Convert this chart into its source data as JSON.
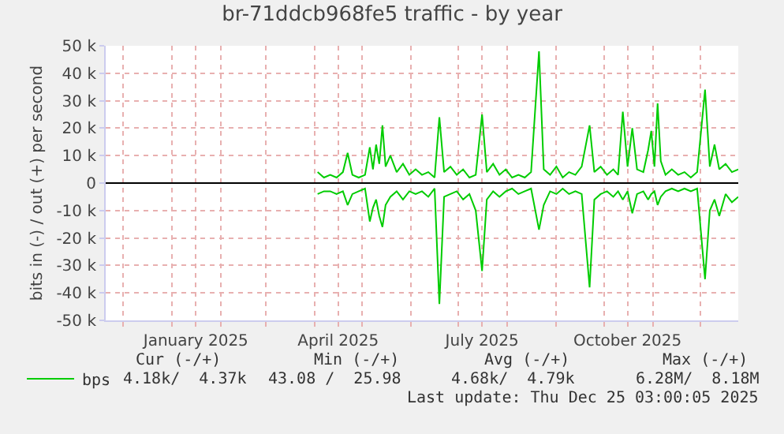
{
  "chart_data": {
    "type": "line",
    "title": "br-71ddcb968fe5 traffic - by year",
    "ylabel": "bits in (-) / out (+) per second",
    "x": [
      "2025-04-03",
      "2025-04-07",
      "2025-04-11",
      "2025-04-15",
      "2025-04-19",
      "2025-04-22",
      "2025-04-25",
      "2025-04-29",
      "2025-05-03",
      "2025-05-06",
      "2025-05-08",
      "2025-05-10",
      "2025-05-12",
      "2025-05-14",
      "2025-05-16",
      "2025-05-19",
      "2025-05-23",
      "2025-05-27",
      "2025-05-31",
      "2025-06-04",
      "2025-06-08",
      "2025-06-12",
      "2025-06-16",
      "2025-06-19",
      "2025-06-22",
      "2025-06-26",
      "2025-06-30",
      "2025-07-04",
      "2025-07-08",
      "2025-07-12",
      "2025-07-16",
      "2025-07-19",
      "2025-07-23",
      "2025-07-27",
      "2025-07-31",
      "2025-08-04",
      "2025-08-08",
      "2025-08-12",
      "2025-08-16",
      "2025-08-21",
      "2025-08-24",
      "2025-08-28",
      "2025-09-01",
      "2025-09-05",
      "2025-09-09",
      "2025-09-13",
      "2025-09-17",
      "2025-09-22",
      "2025-09-25",
      "2025-09-29",
      "2025-10-03",
      "2025-10-07",
      "2025-10-10",
      "2025-10-13",
      "2025-10-16",
      "2025-10-19",
      "2025-10-22",
      "2025-10-26",
      "2025-10-29",
      "2025-10-31",
      "2025-11-02",
      "2025-11-04",
      "2025-11-06",
      "2025-11-09",
      "2025-11-13",
      "2025-11-17",
      "2025-11-21",
      "2025-11-25",
      "2025-11-29",
      "2025-12-04",
      "2025-12-07",
      "2025-12-10",
      "2025-12-13",
      "2025-12-17",
      "2025-12-21",
      "2025-12-25"
    ],
    "series": [
      {
        "name": "bps",
        "color": "#00cc00",
        "values": [
          4000,
          2000,
          3000,
          2000,
          4000,
          11000,
          3000,
          2000,
          3000,
          13000,
          5000,
          14000,
          7000,
          21000,
          6000,
          10000,
          4000,
          7000,
          3000,
          5000,
          3000,
          4000,
          2000,
          24000,
          4000,
          6000,
          3000,
          5000,
          2000,
          3000,
          25000,
          4000,
          7000,
          3000,
          5000,
          2000,
          3000,
          2000,
          4000,
          48000,
          5000,
          3000,
          6000,
          2000,
          4000,
          3000,
          6000,
          21000,
          4000,
          6000,
          3000,
          5000,
          3000,
          26000,
          6000,
          20000,
          5000,
          4000,
          12000,
          19000,
          6000,
          29000,
          8000,
          3000,
          5000,
          3000,
          4000,
          2000,
          4000,
          34000,
          6000,
          14000,
          5000,
          7000,
          4000,
          5000
        ]
      },
      {
        "color": "#00cc00",
        "values": [
          -4000,
          -3000,
          -3000,
          -4000,
          -3000,
          -8000,
          -4000,
          -3000,
          -2000,
          -14000,
          -9000,
          -6000,
          -12000,
          -16000,
          -8000,
          -5000,
          -3000,
          -6000,
          -3000,
          -4000,
          -3000,
          -5000,
          -2000,
          -44000,
          -5000,
          -4000,
          -3000,
          -6000,
          -4000,
          -10000,
          -32000,
          -6000,
          -3000,
          -5000,
          -3000,
          -2000,
          -4000,
          -3000,
          -2000,
          -17000,
          -8000,
          -3000,
          -4000,
          -2000,
          -4000,
          -3000,
          -4000,
          -38000,
          -6000,
          -4000,
          -3000,
          -5000,
          -3000,
          -6000,
          -3000,
          -11000,
          -4000,
          -3000,
          -6000,
          -4000,
          -3000,
          -8000,
          -5000,
          -3000,
          -2000,
          -3000,
          -2000,
          -3000,
          -2000,
          -35000,
          -10000,
          -6000,
          -12000,
          -4000,
          -7000,
          -5000
        ]
      }
    ],
    "xlim": [
      "2024-11-20",
      "2025-12-25"
    ],
    "xticks": [
      {
        "value": "2024-12-01",
        "label": null
      },
      {
        "value": "2025-01-01",
        "label": null
      },
      {
        "value": "2025-01-16",
        "label": "January 2025"
      },
      {
        "value": "2025-02-01",
        "label": null
      },
      {
        "value": "2025-03-01",
        "label": null
      },
      {
        "value": "2025-04-01",
        "label": null
      },
      {
        "value": "2025-04-16",
        "label": "April 2025"
      },
      {
        "value": "2025-05-01",
        "label": null
      },
      {
        "value": "2025-06-01",
        "label": null
      },
      {
        "value": "2025-07-01",
        "label": null
      },
      {
        "value": "2025-07-16",
        "label": "July 2025"
      },
      {
        "value": "2025-08-01",
        "label": null
      },
      {
        "value": "2025-09-01",
        "label": null
      },
      {
        "value": "2025-10-01",
        "label": null
      },
      {
        "value": "2025-10-16",
        "label": "October 2025"
      },
      {
        "value": "2025-11-01",
        "label": null
      },
      {
        "value": "2025-12-01",
        "label": null
      }
    ],
    "ylim": [
      -50000,
      50000
    ],
    "yticks": [
      {
        "value": -50000,
        "label": "-50 k"
      },
      {
        "value": -40000,
        "label": "-40 k"
      },
      {
        "value": -30000,
        "label": "-30 k"
      },
      {
        "value": -20000,
        "label": "-20 k"
      },
      {
        "value": -10000,
        "label": "-10 k"
      },
      0,
      {
        "value": 10000,
        "label": "10 k"
      },
      {
        "value": 20000,
        "label": "20 k"
      },
      {
        "value": 30000,
        "label": "30 k"
      },
      {
        "value": 40000,
        "label": "40 k"
      },
      {
        "value": 50000,
        "label": "50 k"
      }
    ],
    "ref_lines": [
      {
        "axis": "y",
        "value": 0,
        "color": "#000000"
      }
    ],
    "grid": true,
    "legend": "bottom left",
    "marker": "none",
    "line_style": "solid",
    "annotations": [
      "Cur (-/+)",
      "4.18k/  4.37k",
      "Min (-/+)",
      "43.08 /  25.98",
      "Avg (-/+)",
      "4.68k/  4.79k",
      "Max (-/+)",
      "6.28M/  8.18M",
      "Last update: Thu Dec 25 03:00:05 2025"
    ]
  }
}
